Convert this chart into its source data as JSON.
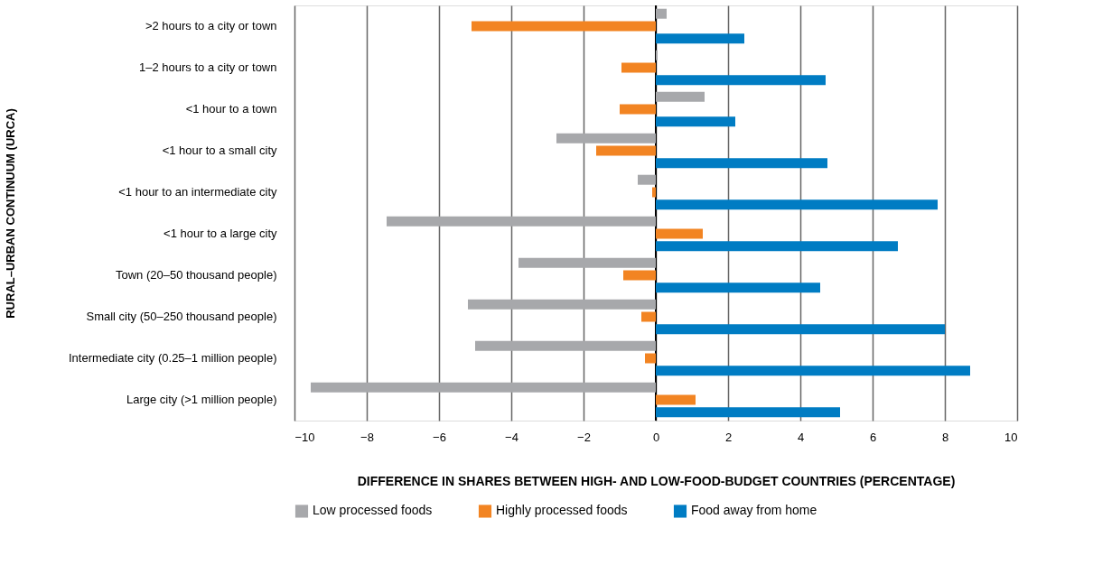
{
  "chart_data": {
    "type": "bar",
    "orientation": "horizontal",
    "xlabel": "DIFFERENCE IN SHARES BETWEEN HIGH- AND LOW-FOOD-BUDGET COUNTRIES (PERCENTAGE)",
    "ylabel": "RURAL–URBAN CONTINUUM (URCA)",
    "categories": [
      ">2 hours to a city or town",
      "1–2 hours to a city or town",
      "<1 hour to a town",
      "<1 hour to a small city",
      "<1 hour to an intermediate city",
      "<1 hour to a large city",
      "Town (20–50 thousand people)",
      "Small city (50–250 thousand people)",
      "Intermediate city (0.25–1 million people)",
      "Large city (>1 million people)"
    ],
    "series": [
      {
        "name": "Low processed foods",
        "color": "#a7a8ab",
        "values": [
          0.3,
          0.05,
          1.35,
          -2.75,
          -0.5,
          -7.45,
          -3.8,
          -5.2,
          -5.0,
          -9.55
        ]
      },
      {
        "name": "Highly processed foods",
        "color": "#f28422",
        "values": [
          -5.1,
          -0.95,
          -1.0,
          -1.65,
          -0.1,
          1.3,
          -0.9,
          -0.4,
          -0.3,
          1.1
        ]
      },
      {
        "name": "Food away from home",
        "color": "#007cc3",
        "values": [
          2.45,
          4.7,
          2.2,
          4.75,
          7.8,
          6.7,
          4.55,
          8.0,
          8.7,
          5.1
        ]
      }
    ],
    "xlim": [
      -10,
      10
    ],
    "xticks": [
      -10,
      -8,
      -6,
      -4,
      -2,
      0,
      2,
      4,
      6,
      8,
      10
    ],
    "grid": "x",
    "legend": "bottom"
  }
}
